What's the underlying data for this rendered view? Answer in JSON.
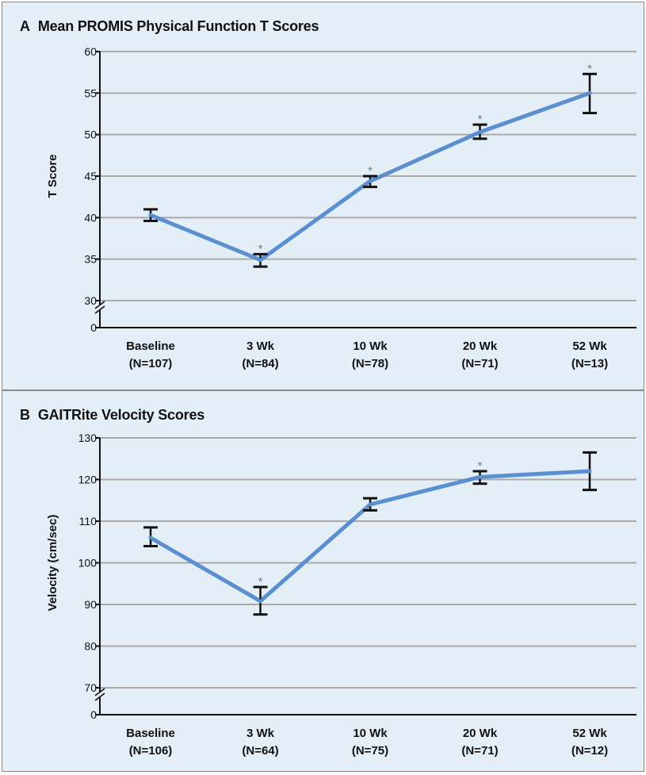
{
  "colors": {
    "line": "#5b8fd0",
    "error_bar": "#111111",
    "asterisk": "#7a7a7a",
    "grid": "#a9a9a9",
    "panel_background": "#e4eef7",
    "panel_border": "#8a8a8a"
  },
  "chart_data": [
    {
      "panel_letter": "A",
      "type": "line",
      "title": "Mean PROMIS Physical Function T Scores",
      "xlabel": "",
      "ylabel": "T Score",
      "categories": [
        {
          "label": "Baseline",
          "n": "(N=107)"
        },
        {
          "label": "3 Wk",
          "n": "(N=84)"
        },
        {
          "label": "10 Wk",
          "n": "(N=78)"
        },
        {
          "label": "20 Wk",
          "n": "(N=71)"
        },
        {
          "label": "52 Wk",
          "n": "(N=13)"
        }
      ],
      "series": [
        {
          "values": [
            40.3,
            34.9,
            44.4,
            50.3,
            55.0
          ],
          "error_low": [
            39.6,
            34.1,
            43.7,
            49.5,
            52.6
          ],
          "error_high": [
            41.0,
            35.6,
            45.0,
            51.2,
            57.3
          ],
          "significant": [
            false,
            true,
            true,
            true,
            true
          ]
        }
      ],
      "asterisk": "*",
      "y_ticks": [
        "60",
        "55",
        "50",
        "45",
        "40",
        "35",
        "30",
        "0"
      ],
      "ylim": [
        30,
        60
      ],
      "axis_break": true,
      "grid": true
    },
    {
      "panel_letter": "B",
      "type": "line",
      "title": "GAITRite Velocity Scores",
      "xlabel": "",
      "ylabel": "Velocity (cm/sec)",
      "categories": [
        {
          "label": "Baseline",
          "n": "(N=106)"
        },
        {
          "label": "3 Wk",
          "n": "(N=64)"
        },
        {
          "label": "10 Wk",
          "n": "(N=75)"
        },
        {
          "label": "20 Wk",
          "n": "(N=71)"
        },
        {
          "label": "52 Wk",
          "n": "(N=12)"
        }
      ],
      "series": [
        {
          "values": [
            106.0,
            90.8,
            114.0,
            120.6,
            122.0
          ],
          "error_low": [
            104.0,
            87.6,
            112.6,
            119.0,
            117.5
          ],
          "error_high": [
            108.5,
            94.2,
            115.5,
            122.0,
            126.5
          ],
          "significant": [
            false,
            true,
            false,
            true,
            false
          ]
        }
      ],
      "asterisk": "*",
      "y_ticks": [
        "130",
        "120",
        "110",
        "100",
        "90",
        "80",
        "70",
        "0"
      ],
      "ylim": [
        70,
        130
      ],
      "axis_break": true,
      "grid": true
    }
  ]
}
